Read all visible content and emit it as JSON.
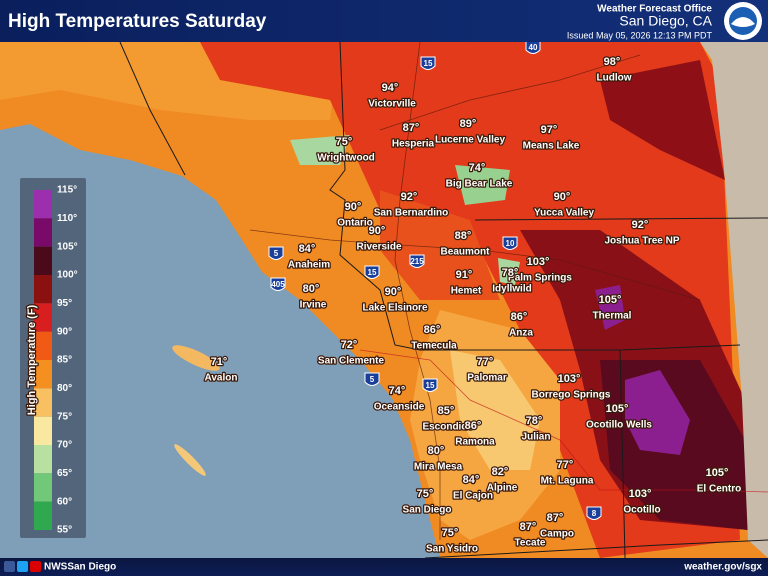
{
  "header": {
    "title": "High Temperatures Saturday",
    "office": "Weather Forecast Office",
    "location": "San Diego, CA",
    "issued": "Issued May 05, 2026 12:13 PM PDT"
  },
  "footer": {
    "social": "NWSSan Diego",
    "url": "weather.gov/sgx"
  },
  "legend": {
    "title": "High Temperature (F)",
    "labels": [
      "115°",
      "110°",
      "105°",
      "100°",
      "95°",
      "90°",
      "85°",
      "80°",
      "75°",
      "70°",
      "65°",
      "60°",
      "55°"
    ]
  },
  "highways": [
    "40",
    "15",
    "10",
    "215",
    "5",
    "405",
    "15",
    "5",
    "15",
    "8"
  ],
  "cities": [
    {
      "temp": "98°",
      "name": "Ludlow"
    },
    {
      "temp": "94°",
      "name": "Victorville"
    },
    {
      "temp": "87°",
      "name": "Hesperia"
    },
    {
      "temp": "89°",
      "name": "Lucerne Valley"
    },
    {
      "temp": "97°",
      "name": "Means Lake"
    },
    {
      "temp": "75°",
      "name": "Wrightwood"
    },
    {
      "temp": "74°",
      "name": "Big Bear Lake"
    },
    {
      "temp": "92°",
      "name": "San Bernardino"
    },
    {
      "temp": "90°",
      "name": "Yucca Valley"
    },
    {
      "temp": "90°",
      "name": "Ontario"
    },
    {
      "temp": "92°",
      "name": "Joshua Tree NP"
    },
    {
      "temp": "90°",
      "name": "Riverside"
    },
    {
      "temp": "88°",
      "name": "Beaumont"
    },
    {
      "temp": "84°",
      "name": "Anaheim"
    },
    {
      "temp": "103°",
      "name": "Palm Springs"
    },
    {
      "temp": "78°",
      "name": "Idyllwild"
    },
    {
      "temp": "91°",
      "name": "Hemet"
    },
    {
      "temp": "80°",
      "name": "Irvine"
    },
    {
      "temp": "90°",
      "name": "Lake Elsinore"
    },
    {
      "temp": "105°",
      "name": "Thermal"
    },
    {
      "temp": "86°",
      "name": "Anza"
    },
    {
      "temp": "86°",
      "name": "Temecula"
    },
    {
      "temp": "72°",
      "name": "San Clemente"
    },
    {
      "temp": "71°",
      "name": "Avalon"
    },
    {
      "temp": "77°",
      "name": "Palomar"
    },
    {
      "temp": "103°",
      "name": "Borrego Springs"
    },
    {
      "temp": "74°",
      "name": "Oceanside"
    },
    {
      "temp": "105°",
      "name": "Ocotillo Wells"
    },
    {
      "temp": "85°",
      "name": "Escondido"
    },
    {
      "temp": "78°",
      "name": "Julian"
    },
    {
      "temp": "86°",
      "name": "Ramona"
    },
    {
      "temp": "80°",
      "name": "Mira Mesa"
    },
    {
      "temp": "82°",
      "name": "Alpine"
    },
    {
      "temp": "77°",
      "name": "Mt. Laguna"
    },
    {
      "temp": "84°",
      "name": "El Cajon"
    },
    {
      "temp": "105°",
      "name": "El Centro"
    },
    {
      "temp": "75°",
      "name": "San Diego"
    },
    {
      "temp": "103°",
      "name": "Ocotillo"
    },
    {
      "temp": "87°",
      "name": "Campo"
    },
    {
      "temp": "87°",
      "name": "Tecate"
    },
    {
      "temp": "75°",
      "name": "San Ysidro"
    }
  ]
}
